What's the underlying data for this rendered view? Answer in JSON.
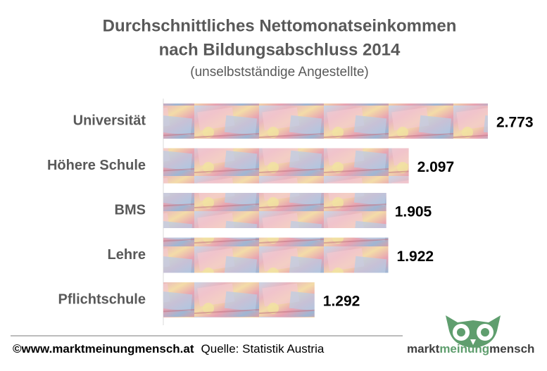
{
  "chart_data": {
    "type": "bar",
    "orientation": "horizontal",
    "title": [
      "Durchschnittliches Nettomonatseinkommen",
      "nach Bildungsabschluss 2014"
    ],
    "subtitle": "(unselbstständige Angestellte)",
    "categories": [
      "Universität",
      "Höhere Schule",
      "BMS",
      "Lehre",
      "Pflichtschule"
    ],
    "values": [
      2773,
      2097,
      1905,
      1922,
      1292
    ],
    "value_labels": [
      "2.773",
      "2.097",
      "1.905",
      "1.922",
      "1.292"
    ]
  },
  "footer": {
    "website": "©www.marktmeinungmensch.at",
    "source": "Quelle: Statistik Austria"
  },
  "logo": [
    "markt",
    "meinung",
    "mensch"
  ]
}
